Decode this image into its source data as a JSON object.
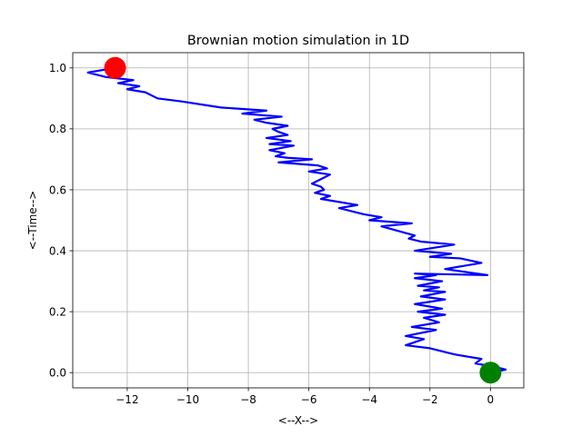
{
  "chart_data": {
    "type": "line",
    "title": "Brownian motion simulation in 1D",
    "xlabel": "<--X-->",
    "ylabel": "<--Time-->",
    "xlim": [
      -13.8,
      1.1
    ],
    "ylim": [
      -0.05,
      1.05
    ],
    "x_ticks": [
      -12,
      -10,
      -8,
      -6,
      -4,
      -2,
      0
    ],
    "x_tick_labels": [
      "−12",
      "−10",
      "−8",
      "−6",
      "−4",
      "−2",
      "0"
    ],
    "y_ticks": [
      0.0,
      0.2,
      0.4,
      0.6,
      0.8,
      1.0
    ],
    "y_tick_labels": [
      "0.0",
      "0.2",
      "0.4",
      "0.6",
      "0.8",
      "1.0"
    ],
    "grid": true,
    "series": [
      {
        "color": "#0000ff",
        "x": [
          0,
          0.5,
          0.1,
          -0.5,
          -0.3,
          -0.9,
          -1.2,
          -2.0,
          -2.8,
          -2.2,
          -2.8,
          -1.8,
          -2.6,
          -1.7,
          -2.2,
          -1.5,
          -2.4,
          -1.6,
          -2.5,
          -1.5,
          -2.3,
          -1.5,
          -2.2,
          -1.7,
          -2.4,
          -1.6,
          -2.5,
          -1.8,
          -2.5,
          -0.1,
          -1.5,
          -0.3,
          -1.0,
          -2.0,
          -1.3,
          -2.5,
          -1.2,
          -2.3,
          -2.7,
          -2.5,
          -3.6,
          -2.6,
          -4.0,
          -3.6,
          -4.2,
          -4.6,
          -5.0,
          -4.4,
          -5.6,
          -5.3,
          -5.8,
          -5.5,
          -5.6,
          -5.9,
          -5.3,
          -6.0,
          -5.4,
          -5.7,
          -7.0,
          -5.9,
          -6.7,
          -7.1,
          -6.8,
          -7.3,
          -6.5,
          -7.3,
          -6.6,
          -7.4,
          -6.7,
          -7.0,
          -7.2,
          -6.7,
          -7.4,
          -7.8,
          -6.9,
          -8.2,
          -7.4,
          -8.9,
          -10.2,
          -11.0,
          -11.4,
          -12.0,
          -11.6,
          -12.3,
          -11.8,
          -12.7,
          -13.3,
          -12.4
        ],
        "y": [
          0.0,
          0.01,
          0.02,
          0.03,
          0.045,
          0.055,
          0.06,
          0.08,
          0.09,
          0.11,
          0.12,
          0.14,
          0.15,
          0.165,
          0.18,
          0.19,
          0.2,
          0.21,
          0.225,
          0.24,
          0.25,
          0.265,
          0.27,
          0.28,
          0.285,
          0.3,
          0.31,
          0.32,
          0.325,
          0.32,
          0.34,
          0.36,
          0.375,
          0.38,
          0.39,
          0.4,
          0.42,
          0.43,
          0.44,
          0.45,
          0.48,
          0.49,
          0.5,
          0.51,
          0.52,
          0.53,
          0.54,
          0.55,
          0.57,
          0.58,
          0.59,
          0.6,
          0.61,
          0.62,
          0.65,
          0.66,
          0.67,
          0.68,
          0.69,
          0.7,
          0.705,
          0.71,
          0.72,
          0.73,
          0.745,
          0.75,
          0.76,
          0.77,
          0.78,
          0.79,
          0.8,
          0.81,
          0.82,
          0.83,
          0.84,
          0.85,
          0.86,
          0.87,
          0.89,
          0.9,
          0.92,
          0.93,
          0.94,
          0.95,
          0.96,
          0.97,
          0.985,
          1.0
        ]
      }
    ],
    "markers": [
      {
        "name": "start",
        "x": 0,
        "y": 0.0,
        "color": "#008000"
      },
      {
        "name": "end",
        "x": -12.4,
        "y": 1.0,
        "color": "#ff0000"
      }
    ]
  }
}
